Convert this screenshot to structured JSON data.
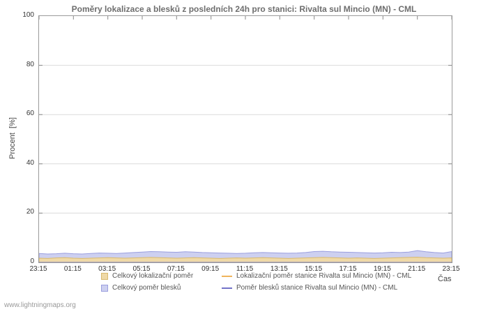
{
  "title": "Poměry lokalizace a blesků z posledních 24h pro stanici: Rivalta sul Mincio (MN) - CML",
  "ylabel": "Procent  [%]",
  "xlabel": "Čas",
  "footer": "www.lightningmaps.org",
  "chart_data": {
    "type": "area",
    "ylim": [
      0,
      100
    ],
    "y_ticks": [
      0,
      20,
      40,
      60,
      80,
      100
    ],
    "x_ticks": [
      "23:15",
      "01:15",
      "03:15",
      "05:15",
      "07:15",
      "09:15",
      "11:15",
      "13:15",
      "15:15",
      "17:15",
      "19:15",
      "21:15",
      "23:15"
    ],
    "grid": "horizontal",
    "legend_position": "bottom",
    "series": [
      {
        "name": "Celkový lokalizační poměr",
        "style": "area",
        "color": "#efd9a7",
        "edge": "#d8b96e",
        "values": [
          1.7,
          1.6,
          1.8,
          1.9,
          1.7,
          1.6,
          1.7,
          1.8,
          1.9,
          1.8,
          1.7,
          1.8,
          1.9,
          2.0,
          1.9,
          1.8,
          1.7,
          1.8,
          1.9,
          1.8,
          1.7,
          1.6,
          1.7,
          1.8,
          1.7,
          1.8,
          1.9,
          1.8,
          1.7,
          1.6,
          1.7,
          1.8,
          1.9,
          2.0,
          1.9,
          1.8,
          1.7,
          1.8,
          1.7,
          1.6,
          1.7,
          1.8,
          1.9,
          2.0,
          2.1,
          1.9,
          1.8,
          1.7,
          1.8
        ]
      },
      {
        "name": "Lokalizační poměr stanice Rivalta sul Mincio (MN) - CML",
        "style": "line",
        "color": "#efb45c",
        "values": [
          0,
          0
        ]
      },
      {
        "name": "Celkový poměr blesků",
        "style": "area",
        "color": "#cdd0f0",
        "edge": "#9a9ede",
        "values": [
          3.6,
          3.4,
          3.5,
          3.7,
          3.5,
          3.4,
          3.6,
          3.8,
          3.7,
          3.6,
          3.8,
          4.0,
          4.2,
          4.4,
          4.3,
          4.2,
          4.1,
          4.3,
          4.2,
          4.0,
          3.9,
          3.8,
          3.7,
          3.6,
          3.7,
          3.9,
          4.0,
          3.9,
          3.8,
          3.7,
          3.8,
          4.0,
          4.4,
          4.5,
          4.3,
          4.2,
          4.1,
          4.0,
          3.9,
          3.8,
          3.9,
          4.1,
          4.0,
          4.2,
          4.8,
          4.3,
          4.0,
          3.8,
          4.4
        ]
      },
      {
        "name": "Poměr blesků stanice Rivalta sul Mincio (MN) - CML",
        "style": "line",
        "color": "#7272c8",
        "values": [
          0,
          0
        ]
      }
    ]
  }
}
